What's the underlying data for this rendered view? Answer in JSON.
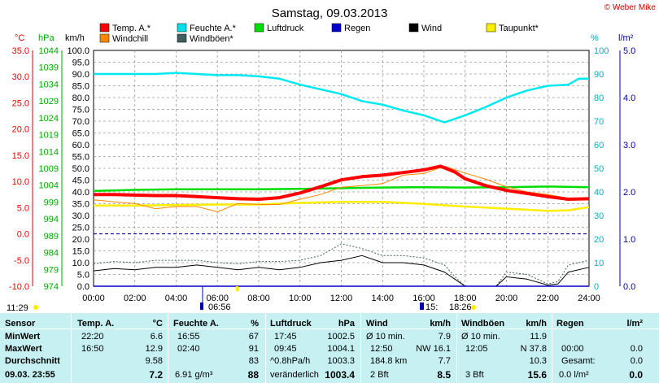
{
  "header": {
    "title": "Samstag, 09.03.2013",
    "copyright": "© Weber Mike"
  },
  "legend": [
    {
      "label": "Temp. A.*",
      "color": "#ff0000"
    },
    {
      "label": "Feuchte A.*",
      "color": "#00e0e8"
    },
    {
      "label": "Luftdruck",
      "color": "#00dd00"
    },
    {
      "label": "Regen",
      "color": "#0000cc"
    },
    {
      "label": "Wind",
      "color": "#000000"
    },
    {
      "label": "Taupunkt*",
      "color": "#ffee00"
    },
    {
      "label": "Windchill",
      "color": "#ff8800"
    },
    {
      "label": "Windböen*",
      "color": "#406060"
    }
  ],
  "axis_units": {
    "temp": "°C",
    "pressure": "hPa",
    "wind": "km/h",
    "humidity": "%",
    "rain": "l/m²"
  },
  "timestamps": {
    "sunrise": "06:56",
    "sunset": "18:26",
    "moonrise": "11:29",
    "marker": "15:"
  },
  "chart_data": {
    "type": "line",
    "title": "Samstag, 09.03.2013",
    "x_ticks": [
      "00:00",
      "02:00",
      "04:00",
      "06:00",
      "08:00",
      "10:00",
      "12:00",
      "14:00",
      "16:00",
      "18:00",
      "20:00",
      "22:00",
      "24:00"
    ],
    "axes": {
      "temp": {
        "unit": "°C",
        "range": [
          -10,
          35
        ],
        "ticks": [
          "35.0",
          "30.0",
          "25.0",
          "20.0",
          "15.0",
          "10.0",
          "5.0",
          "0.0",
          "-5.0",
          "-10.0"
        ],
        "color": "#ff0000"
      },
      "pressure": {
        "unit": "hPa",
        "range": [
          974,
          1044
        ],
        "ticks": [
          "1044",
          "1039",
          "1034",
          "1029",
          "1024",
          "1019",
          "1014",
          "1009",
          "1004",
          "999",
          "994",
          "989",
          "984",
          "979",
          "974"
        ],
        "color": "#00aa00"
      },
      "wind": {
        "unit": "km/h",
        "range": [
          0,
          100
        ],
        "ticks": [
          "100.0",
          "95.0",
          "90.0",
          "85.0",
          "80.0",
          "75.0",
          "70.0",
          "65.0",
          "60.0",
          "55.0",
          "50.0",
          "45.0",
          "40.0",
          "35.0",
          "30.0",
          "25.0",
          "20.0",
          "15.0",
          "10.0",
          "5.0",
          "0.0"
        ]
      },
      "humidity": {
        "unit": "%",
        "range": [
          0,
          100
        ],
        "ticks": [
          "100",
          "90",
          "80",
          "70",
          "60",
          "50",
          "40",
          "30",
          "20",
          "10",
          "0"
        ],
        "color": "#00b0c0"
      },
      "rain": {
        "unit": "l/m²",
        "range": [
          0,
          5
        ],
        "ticks": [
          "5.0",
          "4.0",
          "3.0",
          "2.0",
          "1.0",
          "0.0"
        ],
        "color": "#0000aa"
      }
    },
    "series": [
      {
        "name": "Temp. A.*",
        "axis": "temp",
        "color": "#ff0000",
        "x": [
          0,
          1,
          2,
          3,
          4,
          5,
          6,
          7,
          8,
          9,
          10,
          11,
          12,
          13,
          14,
          15,
          16,
          16.8,
          17.5,
          18,
          19,
          20,
          21,
          22,
          23,
          24
        ],
        "values": [
          7.5,
          7.5,
          7.4,
          7.3,
          7.3,
          7.1,
          6.9,
          6.7,
          6.6,
          6.9,
          7.8,
          9.0,
          10.3,
          10.9,
          11.2,
          11.7,
          12.2,
          12.9,
          11.8,
          10.5,
          9.2,
          8.3,
          7.7,
          7.1,
          6.6,
          6.7
        ]
      },
      {
        "name": "Feuchte A.*",
        "axis": "humidity",
        "color": "#00e8f0",
        "x": [
          0,
          1,
          2,
          3,
          4,
          5,
          6,
          7,
          8,
          9,
          10,
          11,
          12,
          13,
          14,
          15,
          16,
          17,
          18,
          19,
          20,
          21,
          22,
          23,
          23.5,
          24
        ],
        "values": [
          90,
          90,
          90,
          90,
          90.5,
          90,
          89.5,
          89.5,
          89,
          88,
          85.5,
          83.5,
          81.5,
          78.5,
          77,
          74.5,
          72.5,
          69.5,
          72.5,
          76,
          80,
          83,
          85,
          85.5,
          88,
          88
        ]
      },
      {
        "name": "Luftdruck",
        "axis": "pressure",
        "color": "#00dd00",
        "x": [
          0,
          2,
          4,
          6,
          8,
          10,
          12,
          14,
          16,
          18,
          20,
          22,
          24
        ],
        "values": [
          1002.3,
          1002.6,
          1002.8,
          1002.8,
          1002.8,
          1002.9,
          1003.1,
          1003.3,
          1003.4,
          1003.3,
          1003.4,
          1003.6,
          1003.4
        ]
      },
      {
        "name": "Taupunkt*",
        "axis": "temp",
        "color": "#ffee00",
        "x": [
          0,
          2,
          4,
          6,
          8,
          10,
          12,
          14,
          16,
          18,
          20,
          22,
          23,
          24
        ],
        "values": [
          5.4,
          5.4,
          5.5,
          5.6,
          5.6,
          5.9,
          6.1,
          6.1,
          5.7,
          5.2,
          4.8,
          4.4,
          4.5,
          5.1
        ]
      },
      {
        "name": "Windchill",
        "axis": "temp",
        "color": "#ff8800",
        "x": [
          0,
          1,
          2,
          3,
          4,
          5,
          6,
          7,
          8,
          9,
          10,
          11,
          12,
          13,
          14,
          15,
          16,
          17,
          18,
          19,
          20,
          21,
          22,
          23,
          24
        ],
        "values": [
          6.5,
          6.1,
          5.8,
          4.8,
          5.2,
          5.2,
          4.2,
          5.8,
          5.6,
          5.6,
          6.6,
          7.5,
          8.9,
          9.2,
          9.6,
          11.2,
          11.5,
          12.9,
          11.6,
          10.4,
          9.0,
          8.0,
          7.5,
          6.8,
          6.6
        ]
      },
      {
        "name": "Wind",
        "axis": "wind",
        "color": "#000000",
        "x": [
          0,
          1,
          2,
          3,
          4,
          5,
          6,
          7,
          8,
          9,
          10,
          11,
          12,
          13,
          14,
          15,
          16,
          17,
          17.5,
          18,
          18.5,
          19,
          19.5,
          20,
          21,
          22,
          22.5,
          23,
          24
        ],
        "values": [
          6.5,
          7.5,
          7,
          8,
          8,
          9,
          8,
          7,
          8,
          7,
          8,
          10,
          11,
          13,
          10,
          10,
          9,
          6,
          3,
          0,
          0,
          0,
          0,
          4,
          3,
          0.5,
          1,
          6,
          8
        ]
      },
      {
        "name": "Windböen*",
        "axis": "wind",
        "color": "#406060",
        "x": [
          0,
          1,
          2,
          3,
          4,
          5,
          6,
          7,
          8,
          9,
          10,
          11,
          12,
          13,
          14,
          15,
          16,
          17,
          17.5,
          18,
          18.5,
          19,
          19.5,
          20,
          21,
          22,
          22.5,
          23,
          24
        ],
        "values": [
          9.5,
          10.5,
          10,
          11,
          11,
          11,
          10,
          9.5,
          10.5,
          10.5,
          11,
          13,
          18,
          16,
          13,
          13,
          12,
          9,
          4,
          0,
          0,
          0,
          0,
          6,
          5,
          1,
          2,
          9,
          11
        ]
      },
      {
        "name": "Regen",
        "axis": "rain",
        "color": "#0000cc",
        "x": [
          0,
          24
        ],
        "values": [
          0,
          0
        ]
      }
    ],
    "reference_lines": [
      {
        "axis": "temp",
        "value": 0,
        "color": "#0000aa",
        "style": "dashed"
      }
    ],
    "grid": true
  },
  "table": {
    "headers": {
      "sensor": "Sensor",
      "temp": "Temp. A.",
      "temp_unit": "°C",
      "hum": "Feuchte A.",
      "hum_unit": "%",
      "press": "Luftdruck",
      "press_unit": "hPa",
      "wind": "Wind",
      "wind_unit": "km/h",
      "gust": "Windböen",
      "gust_unit": "km/h",
      "rain": "Regen",
      "rain_unit": "l/m²"
    },
    "rows": {
      "min": {
        "label": "MinWert",
        "temp_time": "22:20",
        "temp": "6.6",
        "hum_time": "16:55",
        "hum": "67",
        "press_time": "17:45",
        "press": "1002.5",
        "wind_label": "Ø 10 min.",
        "wind": "7.9",
        "gust_label": "Ø 10 min.",
        "gust": "11.9"
      },
      "max": {
        "label": "MaxWert",
        "temp_time": "16:50",
        "temp": "12.9",
        "hum_time": "02:40",
        "hum": "91",
        "press_time": "09:45",
        "press": "1004.1",
        "wind_label": "12:50",
        "wind": "NW 16.1",
        "gust_label": "12:05",
        "gust": "N 37.8",
        "rain_label": "00:00",
        "rain": "0.0"
      },
      "avg": {
        "label": "Durchschnitt",
        "temp": "9.58",
        "hum": "83",
        "press_label": "^0.8hPa/h",
        "press": "1003.3",
        "wind_label": "184.8 km",
        "wind": "7.7",
        "gust": "10.3",
        "rain_label": "Gesamt:",
        "rain": "0.0"
      },
      "cur": {
        "label": "09.03. 23:55",
        "temp": "7.2",
        "hum_label": "6.91 g/m³",
        "hum": "88",
        "press_label": "veränderlich",
        "press": "1003.4",
        "wind_label": "2 Bft",
        "wind": "8.5",
        "gust_label": "3 Bft",
        "gust": "15.6",
        "rain_label": "0.0 l/m²",
        "rain": "0.0"
      }
    }
  }
}
